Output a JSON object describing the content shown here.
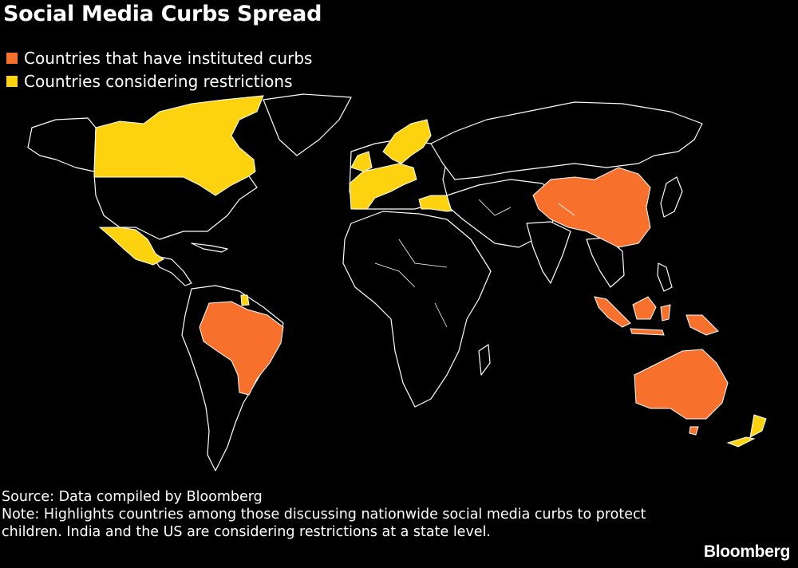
{
  "title": "Social Media Curbs Spread",
  "legend": [
    {
      "label": "Countries that have instituted curbs",
      "color": "#f7712d"
    },
    {
      "label": "Countries considering restrictions",
      "color": "#fdd20f"
    }
  ],
  "source": "Source: Data compiled by Bloomberg",
  "note": "Note: Highlights countries among those discussing nationwide social media curbs to protect children. India and the US are considering restrictions at a state level.",
  "brand": "Bloomberg",
  "colors": {
    "instituted": "#f7712d",
    "considering": "#fdd20f",
    "background": "#000000",
    "border": "#ffffff"
  },
  "regions": {
    "instituted": [
      "China",
      "Brazil",
      "Indonesia",
      "Malaysia",
      "Australia",
      "Papua New Guinea"
    ],
    "considering": [
      "Canada",
      "Mexico",
      "French Guiana",
      "Norway",
      "Sweden",
      "Finland",
      "Denmark",
      "United Kingdom",
      "Ireland",
      "France",
      "Spain",
      "Portugal",
      "Germany",
      "Netherlands",
      "Belgium",
      "Greece",
      "Turkey",
      "New Zealand"
    ]
  }
}
